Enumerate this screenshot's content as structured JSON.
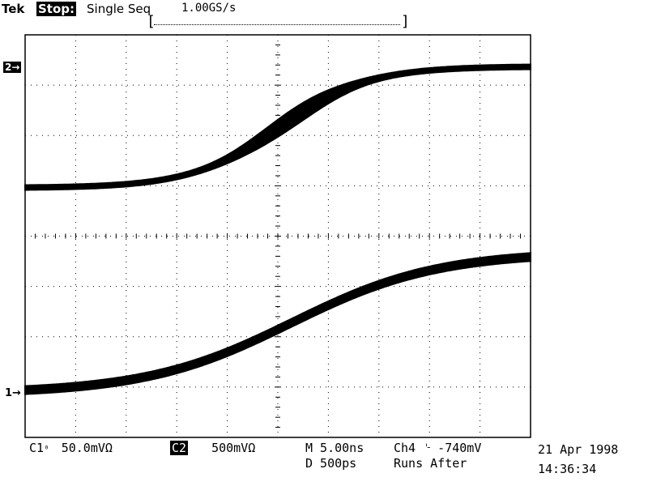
{
  "header": {
    "brand": "Tek",
    "state": "Stop:",
    "mode": "Single Seq",
    "sample_rate": "1.00GS/s",
    "bracket_left": "[",
    "bracket_right": "]"
  },
  "channels": {
    "ch2_marker": "2→",
    "ch1_marker": "1→"
  },
  "footer": {
    "c1_label": "C1",
    "c1_scale": "50.0mVΩ",
    "c2_label": "C2",
    "c2_scale": "500mVΩ",
    "m_label": "M 5.00ns",
    "d_label": "D  500ps",
    "trigger": "Ch4 ⌎  -740mV",
    "runs_after": "Runs After",
    "date": "21 Apr 1998",
    "time": "14:36:34"
  },
  "colors": {
    "background": "#ffffff",
    "trace": "#000000",
    "grid": "#000000"
  }
}
